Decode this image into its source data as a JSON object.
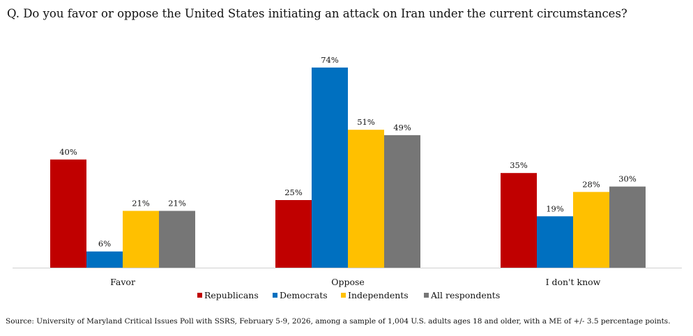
{
  "title": "Q. Do you favor or oppose the United States initiating an attack on Iran under the current circumstances?",
  "source": "Source: University of Maryland Critical Issues Poll with SSRS, February 5-9, 2026, among a sample of 1,004 U.S. adults ages 18 and older, with a ME of +/- 3.5 percentage points.",
  "chart_data": {
    "type": "bar",
    "title": "Q. Do you favor or oppose the United States initiating an attack on Iran under the current circumstances?",
    "categories": [
      "Favor",
      "Oppose",
      "I don't know"
    ],
    "series": [
      {
        "name": "Republicans",
        "color": "#C00000",
        "values": [
          40,
          25,
          35
        ],
        "labels": [
          "40%",
          "25%",
          "35%"
        ]
      },
      {
        "name": "Democrats",
        "color": "#0070C0",
        "values": [
          6,
          74,
          19
        ],
        "labels": [
          "6%",
          "74%",
          "19%"
        ]
      },
      {
        "name": "Independents",
        "color": "#FFC000",
        "values": [
          21,
          51,
          28
        ],
        "labels": [
          "21%",
          "51%",
          "28%"
        ]
      },
      {
        "name": "All respondents",
        "color": "#767676",
        "values": [
          21,
          49,
          30
        ],
        "labels": [
          "21%",
          "49%",
          "30%"
        ]
      }
    ],
    "ylim": [
      0,
      80
    ],
    "xlabel": "",
    "ylabel": "",
    "grid": false,
    "legend_position": "bottom"
  }
}
